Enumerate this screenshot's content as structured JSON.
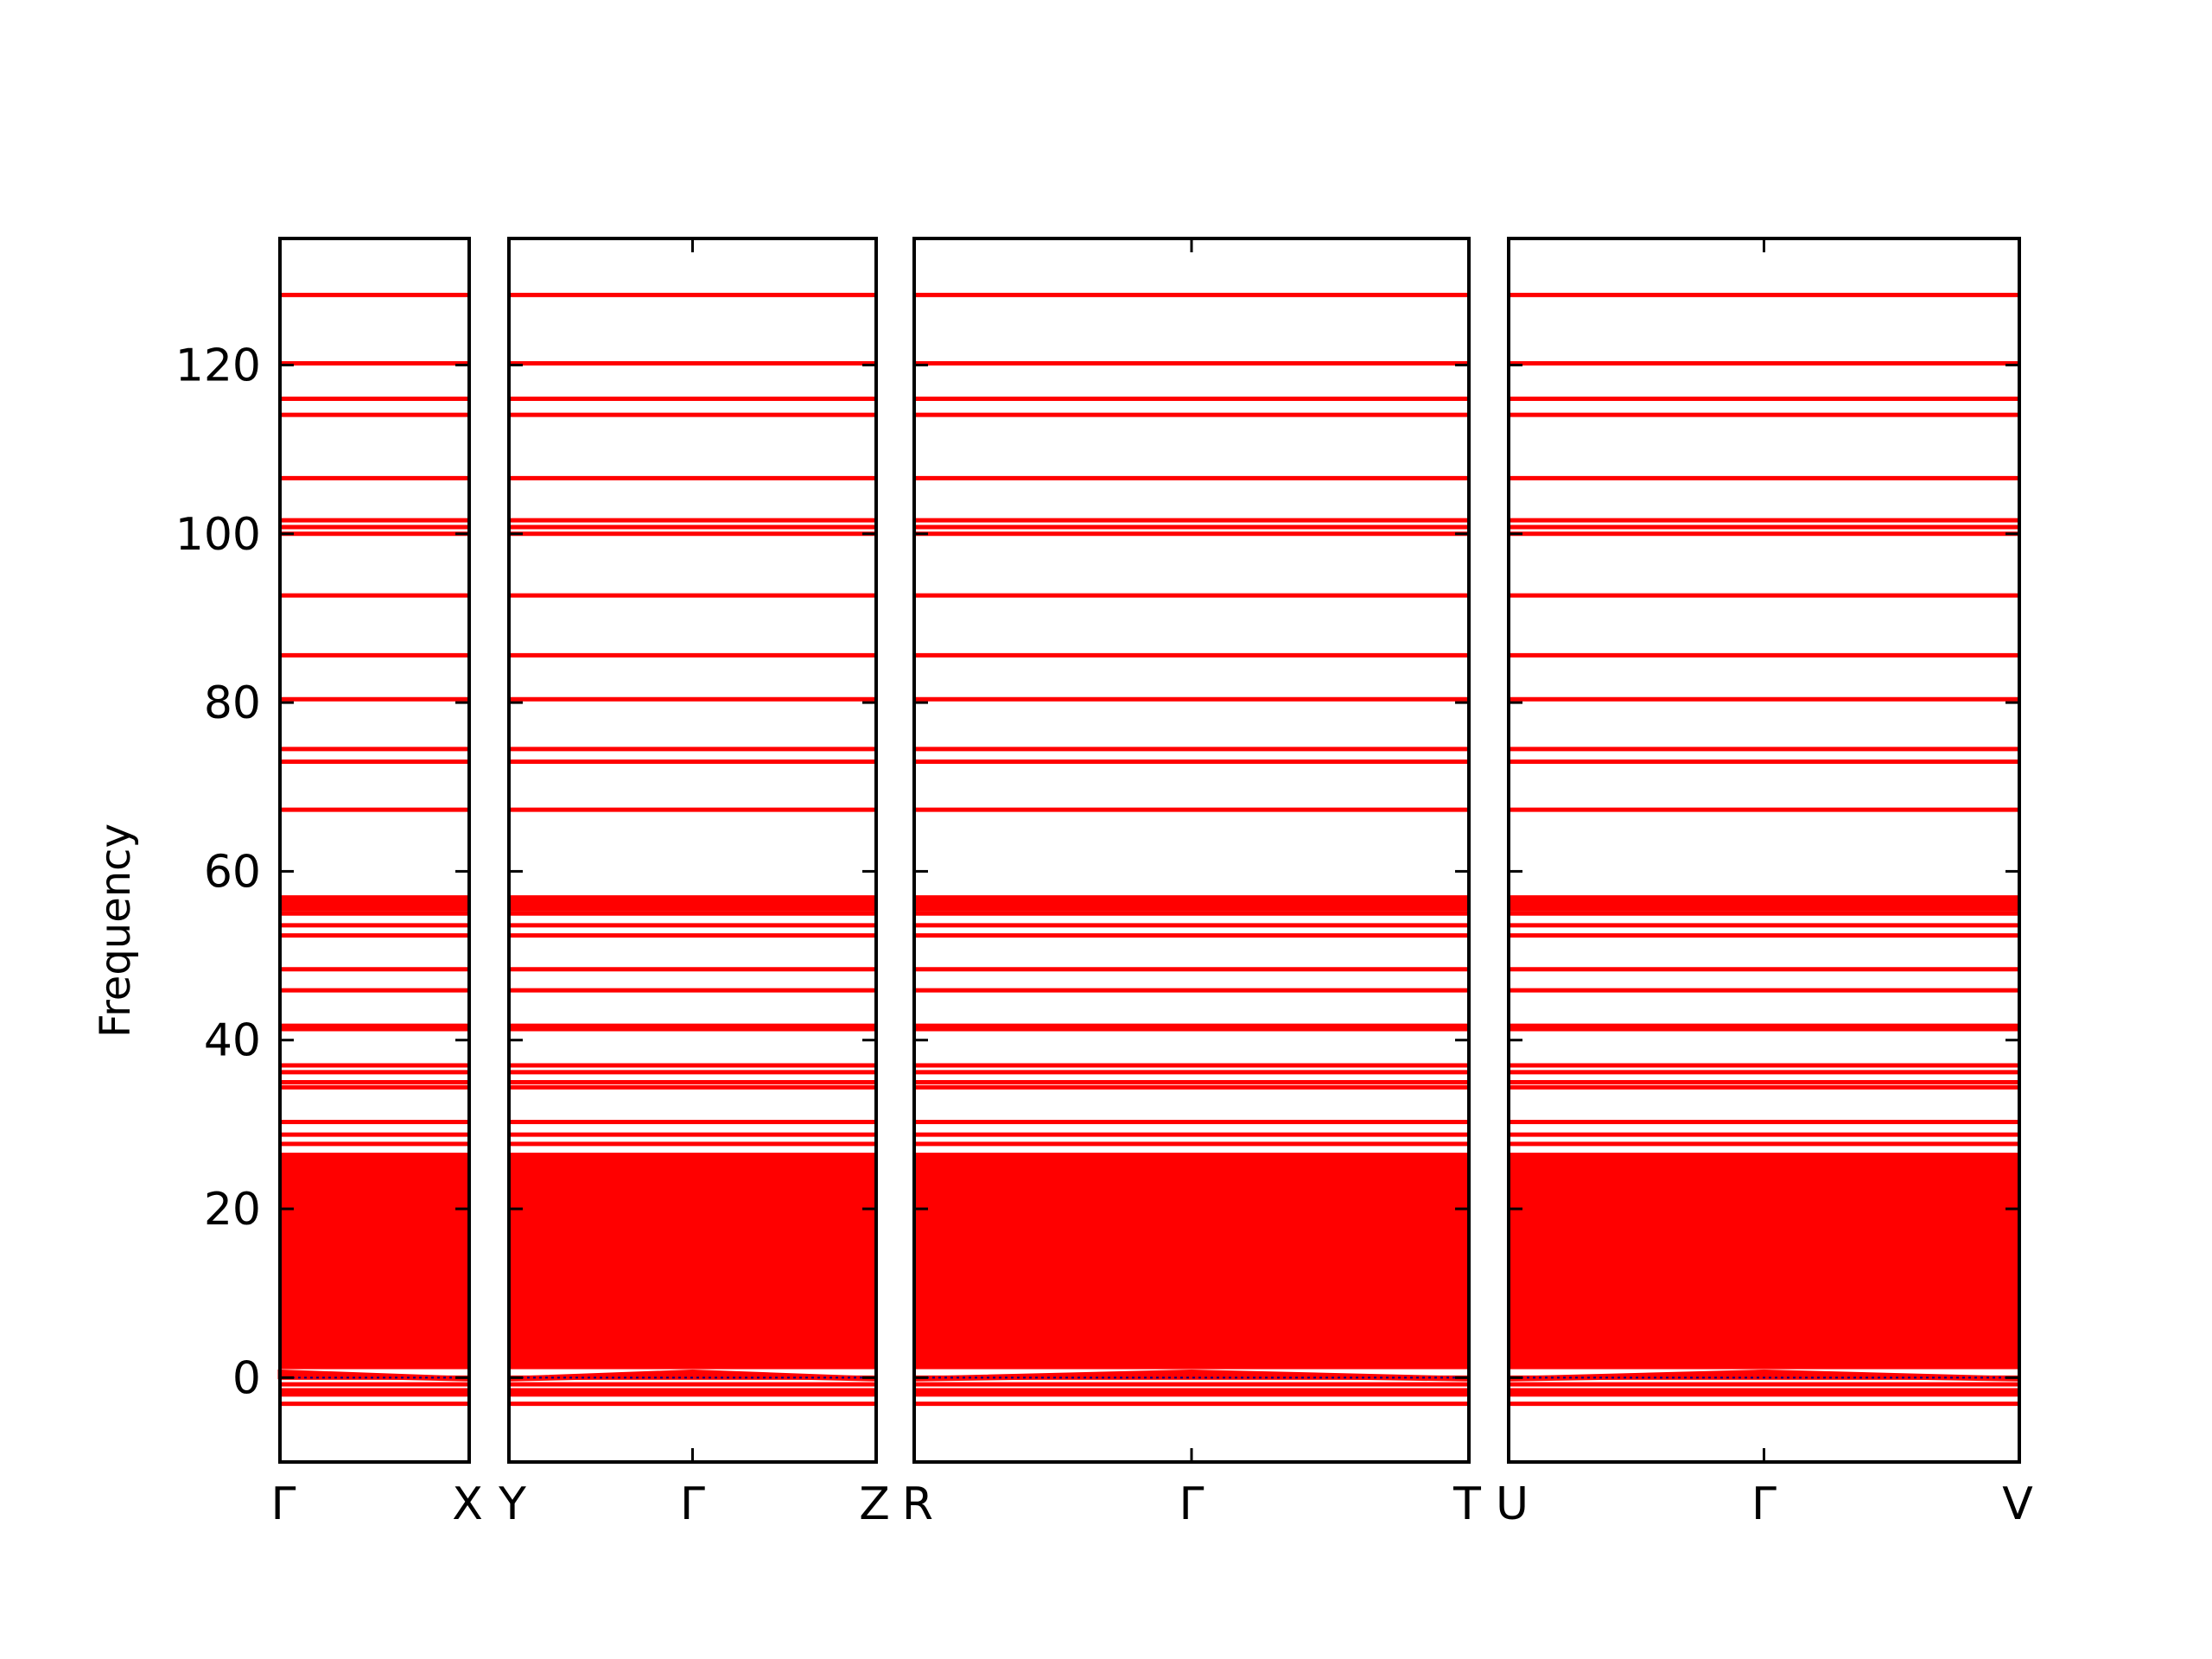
{
  "chart_data": {
    "type": "line",
    "ylabel": "Frequency",
    "ylim": [
      -10,
      135
    ],
    "yticks": [
      0,
      20,
      40,
      60,
      80,
      100,
      120
    ],
    "grid": false,
    "line_color": "#ff0000",
    "zero_line_color": "#000080",
    "panels": [
      {
        "name": "Γ-X",
        "xticklabels": [
          "Γ",
          "X"
        ]
      },
      {
        "name": "Y-Γ-Z",
        "xticklabels": [
          "Y",
          "Γ",
          "Z"
        ]
      },
      {
        "name": "R-Γ-T",
        "xticklabels": [
          "R",
          "Γ",
          "T"
        ]
      },
      {
        "name": "U-Γ-V",
        "xticklabels": [
          "U",
          "Γ",
          "V"
        ]
      }
    ],
    "flat_bands": [
      128.3,
      120.2,
      116.0,
      114.1,
      106.6,
      101.6,
      100.8,
      100.0,
      92.7,
      85.6,
      80.4,
      74.5,
      73.0,
      67.3,
      56.9,
      56.5,
      56.0,
      55.5,
      55.0,
      53.6,
      52.4,
      48.4,
      45.9,
      41.7,
      41.3,
      37.0,
      36.2,
      35.0,
      34.4,
      30.3,
      28.8,
      27.7,
      26.4,
      -0.8,
      -1.5,
      -2.0,
      -3.1
    ],
    "dense_band_range": [
      1.0,
      26.2
    ],
    "acoustic_bands_near_gamma": [
      0.7,
      0.3,
      0.0
    ]
  }
}
